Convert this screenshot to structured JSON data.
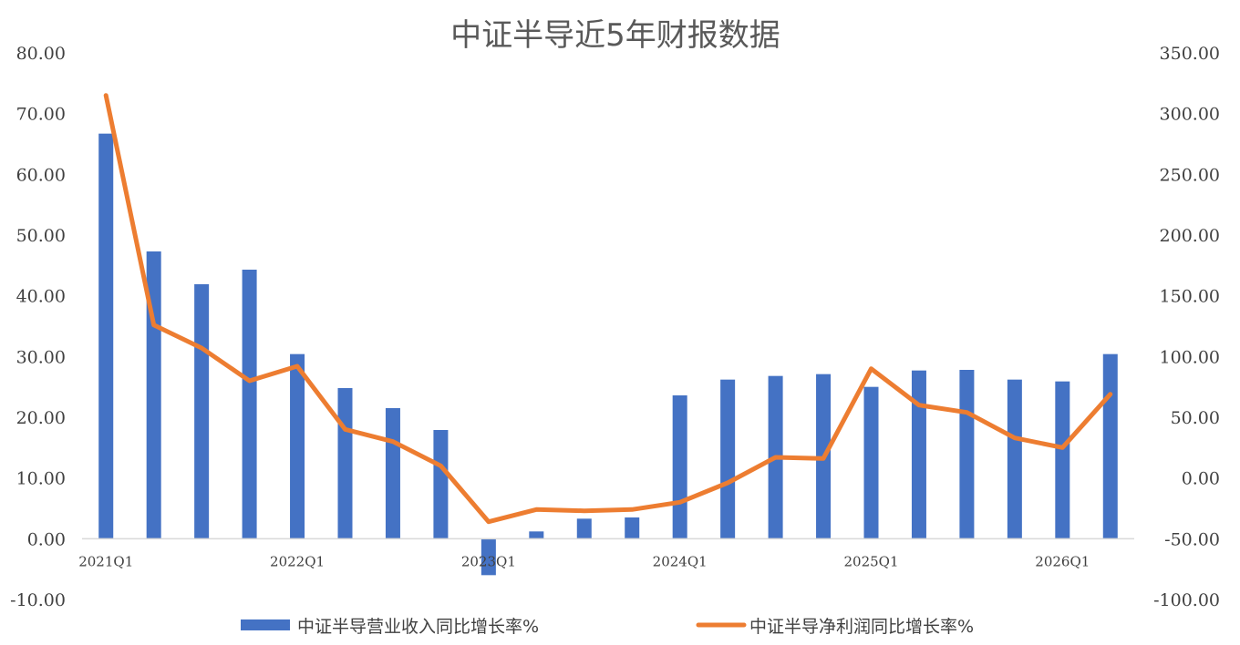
{
  "chart_data": {
    "type": "bar",
    "title": "中证半导近5年财报数据",
    "categories": [
      "2021Q1",
      "2021Q2",
      "2021Q3",
      "2021Q4",
      "2022Q1",
      "2022Q2",
      "2022Q3",
      "2022Q4",
      "2023Q1",
      "2023Q2",
      "2023Q3",
      "2023Q4",
      "2024Q1",
      "2024Q2",
      "2024Q3",
      "2024Q4",
      "2025Q1",
      "2025Q2",
      "2025Q3",
      "2025Q4",
      "2026Q1",
      "2026Q2"
    ],
    "x_tick_labels": [
      "2021Q1",
      "2022Q1",
      "2023Q1",
      "2024Q1",
      "2025Q1",
      "2026Q1"
    ],
    "x_tick_indices": [
      0,
      4,
      8,
      12,
      16,
      20
    ],
    "series": [
      {
        "name": "中证半导营业收入同比增长率%",
        "type": "bar",
        "axis": "left",
        "color": "#4472c4",
        "values": [
          66.7,
          47.3,
          41.9,
          44.3,
          30.4,
          24.8,
          21.5,
          17.9,
          -6.0,
          1.2,
          3.3,
          3.5,
          23.6,
          26.2,
          26.8,
          27.1,
          25.0,
          27.7,
          27.8,
          26.2,
          25.9,
          30.4
        ]
      },
      {
        "name": "中证半导净利润同比增长率%",
        "type": "line",
        "axis": "right",
        "color": "#ed7d31",
        "values": [
          315,
          126,
          107,
          80,
          92,
          40,
          30,
          10,
          -36,
          -26,
          -27,
          -26,
          -20,
          -4,
          17,
          16,
          90,
          60,
          54,
          33,
          25,
          69
        ]
      }
    ],
    "y_left": {
      "min": -10,
      "max": 80,
      "step": 10,
      "tick_labels": [
        "80.00",
        "70.00",
        "60.00",
        "50.00",
        "40.00",
        "30.00",
        "20.00",
        "10.00",
        "0.00",
        "-10.00"
      ]
    },
    "y_right": {
      "min": -100,
      "max": 350,
      "step": 50,
      "tick_labels": [
        "350.00",
        "300.00",
        "250.00",
        "200.00",
        "150.00",
        "100.00",
        "50.00",
        "0.00",
        "-50.00",
        "-100.00"
      ]
    },
    "grid": false,
    "legend_position": "bottom"
  }
}
